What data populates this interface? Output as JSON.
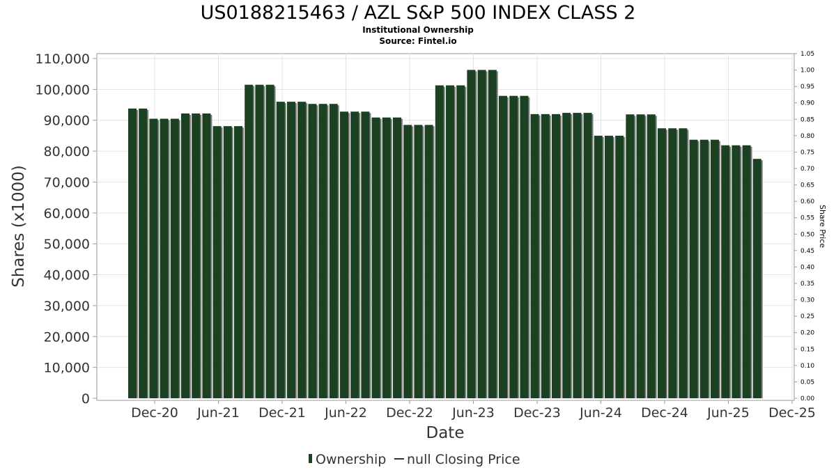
{
  "chart_data": {
    "type": "bar",
    "title": "US0188215463 / AZL S&P 500 INDEX CLASS 2",
    "subtitle_lines": [
      "Institutional Ownership",
      "Source: Fintel.io"
    ],
    "xlabel": "Date",
    "ylabel": "Shares (x1000)",
    "y2label": "Share Price",
    "ylim": [
      0,
      110000
    ],
    "y2lim": [
      0,
      1.05
    ],
    "yticks": [
      "0",
      "10,000",
      "20,000",
      "30,000",
      "40,000",
      "50,000",
      "60,000",
      "70,000",
      "80,000",
      "90,000",
      "100,000",
      "110,000"
    ],
    "y2ticks": [
      "0.00",
      "0.05",
      "0.10",
      "0.15",
      "0.20",
      "0.25",
      "0.30",
      "0.35",
      "0.40",
      "0.45",
      "0.50",
      "0.55",
      "0.60",
      "0.65",
      "0.70",
      "0.75",
      "0.80",
      "0.85",
      "0.90",
      "0.95",
      "1.00",
      "1.05"
    ],
    "xticks": [
      "Dec-20",
      "Jun-21",
      "Dec-21",
      "Jun-22",
      "Dec-22",
      "Jun-23",
      "Dec-23",
      "Jun-24",
      "Dec-24",
      "Jun-25",
      "Dec-25"
    ],
    "grid": true,
    "legend_position": "bottom",
    "bar_color": "#1b4122",
    "shadow_color": "#808080",
    "series": [
      {
        "name": "Ownership",
        "values": [
          93800,
          93800,
          90500,
          90500,
          90500,
          92200,
          92200,
          92200,
          88100,
          88100,
          88100,
          101500,
          101500,
          101500,
          96000,
          96000,
          96000,
          95300,
          95300,
          95300,
          92800,
          92800,
          92800,
          90900,
          90900,
          90900,
          88500,
          88500,
          88500,
          101300,
          101300,
          101300,
          106300,
          106300,
          106300,
          97900,
          97900,
          97900,
          92000,
          92000,
          92000,
          92400,
          92400,
          92400,
          85000,
          85000,
          85000,
          91900,
          91900,
          91900,
          87400,
          87400,
          87400,
          83700,
          83700,
          83700,
          81900,
          81900,
          81900,
          77500
        ]
      }
    ],
    "legend": [
      "Ownership",
      "null Closing Price"
    ]
  }
}
